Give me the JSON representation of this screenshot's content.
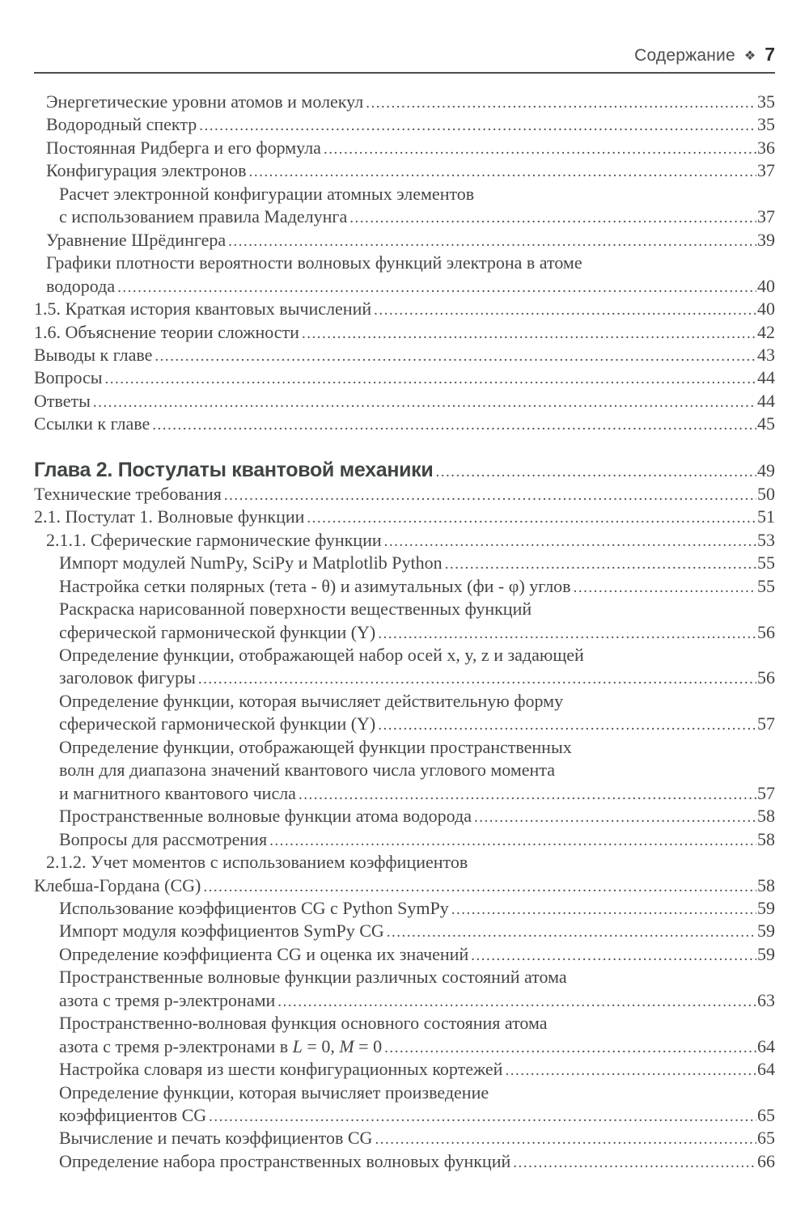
{
  "header": {
    "running_title": "Содержание",
    "separator_icon": "four-diamond-ornament",
    "page_number": "7"
  },
  "colors": {
    "background": "#ffffff",
    "text": "#454545",
    "rule": "#4e4e4e",
    "chapter_heading": "#3e4543"
  },
  "toc": {
    "lines": [
      {
        "text": "Энергетические уровни атомов и молекул",
        "indent": 1,
        "page": "35"
      },
      {
        "text": "Водородный спектр",
        "indent": 1,
        "page": "35"
      },
      {
        "text": "Постоянная Ридберга и его формула",
        "indent": 1,
        "page": "36"
      },
      {
        "text": "Конфигурация электронов",
        "indent": 1,
        "page": "37"
      },
      {
        "text": "Расчет электронной конфигурации атомных элементов",
        "indent": 2,
        "page": null
      },
      {
        "text": "с использованием правила Маделунга",
        "indent": 2,
        "page": "37"
      },
      {
        "text": "Уравнение Шрёдингера",
        "indent": 1,
        "page": "39"
      },
      {
        "text": "Графики плотности вероятности волновых функций электрона в атоме",
        "indent": 1,
        "page": null
      },
      {
        "text": "водорода",
        "indent": 1,
        "page": "40"
      },
      {
        "text": "1.5. Краткая история квантовых вычислений",
        "indent": 0,
        "page": "40"
      },
      {
        "text": "1.6. Объяснение теории сложности",
        "indent": 0,
        "page": "42"
      },
      {
        "text": "Выводы к главе",
        "indent": 0,
        "page": "43"
      },
      {
        "text": "Вопросы",
        "indent": 0,
        "page": "44"
      },
      {
        "text": "Ответы",
        "indent": 0,
        "page": "44"
      },
      {
        "text": "Ссылки к главе",
        "indent": 0,
        "page": "45"
      },
      {
        "text": "Глава 2. Постулаты квантовой механики",
        "indent": 0,
        "page": "49",
        "style": "chapter"
      },
      {
        "text": "Технические требования",
        "indent": 0,
        "page": "50"
      },
      {
        "text": "2.1. Постулат 1. Волновые функции",
        "indent": 0,
        "page": "51"
      },
      {
        "text": "2.1.1. Сферические гармонические функции",
        "indent": 1,
        "page": "53"
      },
      {
        "text": "Импорт модулей NumPy, SciPy и Matplotlib Python",
        "indent": 2,
        "page": "55"
      },
      {
        "text": "Настройка сетки полярных (тета - θ) и азимутальных (фи - φ) углов",
        "indent": 2,
        "page": "55"
      },
      {
        "text": "Раскраска нарисованной поверхности вещественных функций",
        "indent": 2,
        "page": null
      },
      {
        "text": "сферической гармонической функции (Y)",
        "indent": 2,
        "page": "56"
      },
      {
        "text": "Определение функции, отображающей набор осей x, y, z и задающей",
        "indent": 2,
        "page": null
      },
      {
        "text": "заголовок фигуры",
        "indent": 2,
        "page": "56"
      },
      {
        "text": "Определение функции, которая вычисляет действительную форму",
        "indent": 2,
        "page": null
      },
      {
        "text": "сферической гармонической функции (Y)",
        "indent": 2,
        "page": "57"
      },
      {
        "text": "Определение функции, отображающей функции пространственных",
        "indent": 2,
        "page": null
      },
      {
        "text": "волн для диапазона значений квантового числа углового момента",
        "indent": 2,
        "page": null
      },
      {
        "text": "и магнитного квантового числа",
        "indent": 2,
        "page": "57"
      },
      {
        "text": "Пространственные волновые функции атома водорода",
        "indent": 2,
        "page": "58"
      },
      {
        "text": "Вопросы для рассмотрения",
        "indent": 2,
        "page": "58"
      },
      {
        "text": "2.1.2. Учет моментов с использованием коэффициентов",
        "indent": 1,
        "page": null
      },
      {
        "text": "Клебша-Гордана (CG)",
        "indent": 0,
        "page": "58"
      },
      {
        "text": "Использование коэффициентов CG с Python SymPy",
        "indent": 2,
        "page": "59"
      },
      {
        "text": "Импорт модуля коэффициентов SymPy CG",
        "indent": 2,
        "page": "59"
      },
      {
        "text": "Определение коэффициента CG и оценка их значений",
        "indent": 2,
        "page": "59"
      },
      {
        "text": "Пространственные волновые функции различных состояний атома",
        "indent": 2,
        "page": null
      },
      {
        "text": "азота с тремя p-электронами",
        "indent": 2,
        "page": "63"
      },
      {
        "text": "Пространственно-волновая функция основного состояния атома",
        "indent": 2,
        "page": null
      },
      {
        "segments": [
          {
            "text": "азота с тремя p-электронами в "
          },
          {
            "text": "L",
            "italic": true
          },
          {
            "text": " = 0, "
          },
          {
            "text": "M",
            "italic": true
          },
          {
            "text": " = 0"
          }
        ],
        "indent": 2,
        "page": "64"
      },
      {
        "text": "Настройка словаря из шести конфигурационных кортежей",
        "indent": 2,
        "page": "64"
      },
      {
        "text": "Определение функции, которая вычисляет произведение",
        "indent": 2,
        "page": null
      },
      {
        "text": "коэффициентов CG",
        "indent": 2,
        "page": "65"
      },
      {
        "text": "Вычисление и печать коэффициентов CG",
        "indent": 2,
        "page": "65"
      },
      {
        "text": "Определение набора пространственных волновых функций",
        "indent": 2,
        "page": "66"
      }
    ]
  }
}
